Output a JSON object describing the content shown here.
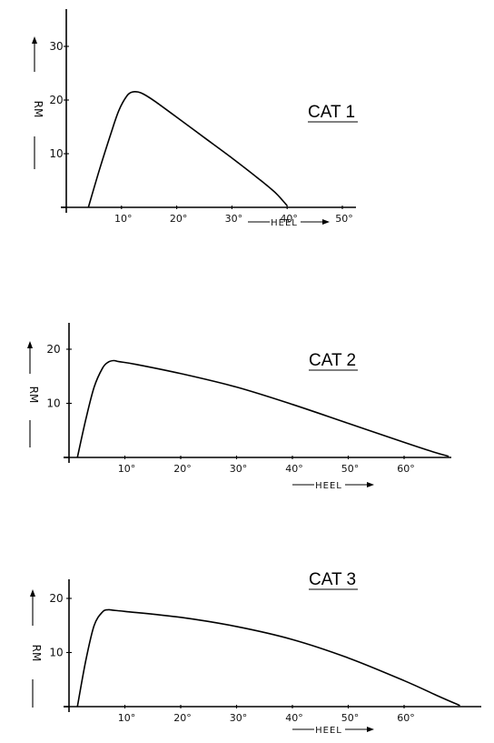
{
  "chart_data": [
    {
      "type": "line",
      "title": "CAT 1",
      "xlabel": "HEEL",
      "ylabel": "RM",
      "x_ticks": [
        "10°",
        "20°",
        "30°",
        "40°",
        "50°"
      ],
      "y_ticks": [
        "10",
        "20",
        "30"
      ],
      "xlim": [
        0,
        52
      ],
      "ylim": [
        0,
        37
      ],
      "series": [
        {
          "x": [
            4,
            6,
            8,
            9.5,
            11,
            12,
            13,
            14,
            16,
            20,
            25,
            30,
            35,
            38,
            40
          ],
          "y": [
            0,
            7,
            13.5,
            18,
            20.8,
            21.5,
            21.5,
            21.1,
            19.8,
            16.8,
            13,
            9.2,
            5.2,
            2.6,
            0.3
          ]
        }
      ]
    },
    {
      "type": "line",
      "title": "CAT 2",
      "xlabel": "HEEL",
      "ylabel": "RM",
      "x_ticks": [
        "10°",
        "20°",
        "30°",
        "40°",
        "50°",
        "60°"
      ],
      "y_ticks": [
        "10",
        "20"
      ],
      "xlim": [
        0,
        70
      ],
      "ylim": [
        0,
        25
      ],
      "series": [
        {
          "x": [
            1.5,
            3,
            4.5,
            6,
            7,
            8,
            9,
            12,
            20,
            30,
            40,
            50,
            60,
            65,
            68
          ],
          "y": [
            0,
            7,
            13,
            16.5,
            17.6,
            17.9,
            17.7,
            17.2,
            15.5,
            13,
            9.8,
            6.3,
            2.8,
            1.1,
            0.2
          ]
        }
      ]
    },
    {
      "type": "line",
      "title": "CAT 3",
      "xlabel": "HEEL",
      "ylabel": "RM",
      "x_ticks": [
        "10°",
        "20°",
        "30°",
        "40°",
        "50°",
        "60°"
      ],
      "y_ticks": [
        "10",
        "20"
      ],
      "xlim": [
        0,
        73
      ],
      "ylim": [
        0,
        25
      ],
      "series": [
        {
          "x": [
            1.5,
            3,
            4.5,
            6,
            7,
            8,
            10,
            20,
            30,
            40,
            50,
            60,
            66,
            70
          ],
          "y": [
            0,
            8.5,
            15,
            17.5,
            17.9,
            17.8,
            17.6,
            16.5,
            14.8,
            12.4,
            9,
            4.8,
            2,
            0.2
          ]
        }
      ]
    }
  ]
}
